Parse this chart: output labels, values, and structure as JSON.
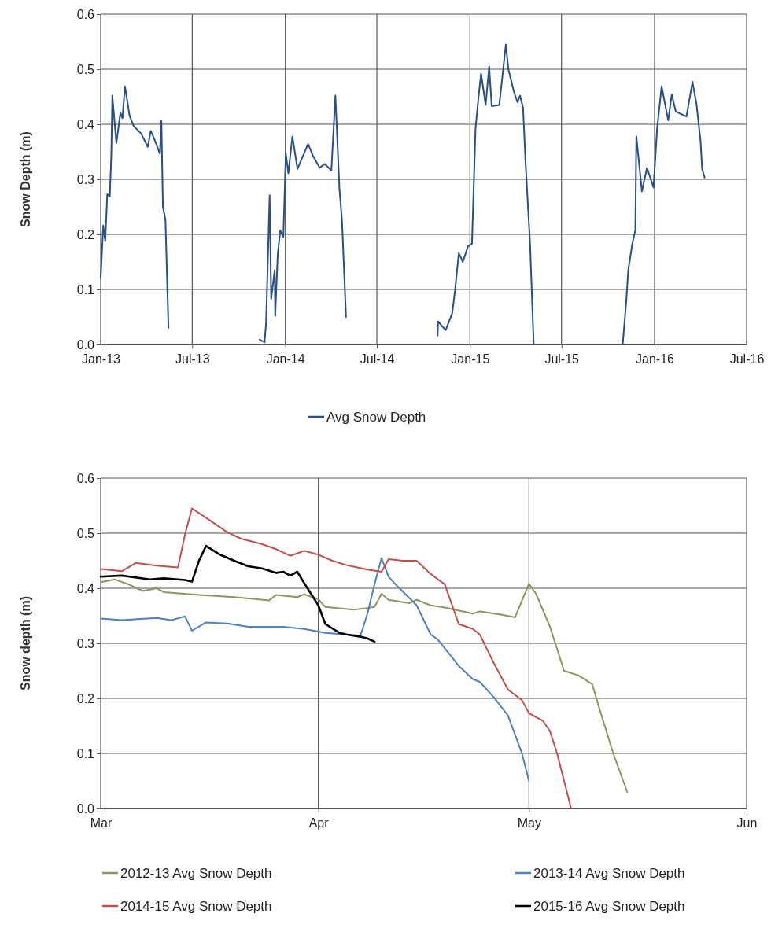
{
  "chart_data": [
    {
      "type": "line",
      "ylabel": "Snow Depth (m)",
      "grid": true,
      "legend": "bottom",
      "xlim": [
        "2013-01-01",
        "2016-07-01"
      ],
      "xticks": [
        {
          "value": "2013-01-01",
          "label": "Jan-13"
        },
        {
          "value": "2013-07-01",
          "label": "Jul-13"
        },
        {
          "value": "2014-01-01",
          "label": "Jan-14"
        },
        {
          "value": "2014-07-01",
          "label": "Jul-14"
        },
        {
          "value": "2015-01-01",
          "label": "Jan-15"
        },
        {
          "value": "2015-07-01",
          "label": "Jul-15"
        },
        {
          "value": "2016-01-01",
          "label": "Jan-16"
        },
        {
          "value": "2016-07-01",
          "label": "Jul-16"
        }
      ],
      "ylim": [
        0,
        0.6
      ],
      "yticks": [
        {
          "value": 0,
          "label": "0.0"
        },
        {
          "value": 0.1,
          "label": "0.1"
        },
        {
          "value": 0.2,
          "label": "0.2"
        },
        {
          "value": 0.3,
          "label": "0.3"
        },
        {
          "value": 0.4,
          "label": "0.4"
        },
        {
          "value": 0.5,
          "label": "0.5"
        },
        {
          "value": 0.6,
          "label": "0.6"
        }
      ],
      "series": [
        {
          "name": "Avg Snow Depth",
          "color": "#284f86",
          "x": [
            "2013-01-01",
            "2013-01-06",
            "2013-01-10",
            "2013-01-14",
            "2013-01-19",
            "2013-01-22",
            "2013-01-24",
            "2013-02-01",
            "2013-02-09",
            "2013-02-13",
            "2013-02-18",
            "2013-02-27",
            "2013-03-07",
            "2013-03-22",
            "2013-04-04",
            "2013-04-10",
            "2013-04-17",
            "2013-04-28",
            "2013-05-01",
            "2013-05-04",
            "2013-05-09",
            "2013-05-15",
            "2013-08-01",
            "2013-11-11",
            "2013-11-21",
            "2013-11-24",
            "2013-12-01",
            "2013-12-04",
            "2013-12-11",
            "2013-12-12",
            "2013-12-17",
            "2013-12-22",
            "2013-12-28",
            "2014-01-02",
            "2014-01-07",
            "2014-01-15",
            "2014-01-25",
            "2014-02-07",
            "2014-02-15",
            "2014-02-25",
            "2014-03-10",
            "2014-03-20",
            "2014-04-02",
            "2014-04-10",
            "2014-04-18",
            "2014-04-23",
            "2014-05-01",
            "2014-08-01",
            "2014-10-29",
            "2014-10-30",
            "2014-11-14",
            "2014-11-27",
            "2014-12-03",
            "2014-12-10",
            "2014-12-18",
            "2014-12-28",
            "2015-01-05",
            "2015-01-12",
            "2015-01-18",
            "2015-01-23",
            "2015-02-01",
            "2015-02-08",
            "2015-02-13",
            "2015-02-28",
            "2015-03-13",
            "2015-03-18",
            "2015-03-29",
            "2015-04-05",
            "2015-04-10",
            "2015-04-16",
            "2015-04-21",
            "2015-04-30",
            "2015-05-07",
            "2015-08-01",
            "2015-10-30",
            "2015-11-06",
            "2015-11-10",
            "2015-11-18",
            "2015-11-24",
            "2015-11-26",
            "2015-12-07",
            "2015-12-17",
            "2015-12-30",
            "2016-01-06",
            "2016-01-15",
            "2016-01-28",
            "2016-02-04",
            "2016-02-12",
            "2016-03-04",
            "2016-03-16",
            "2016-03-24",
            "2016-04-01",
            "2016-04-04",
            "2016-04-09"
          ],
          "values": [
            0.121,
            0.216,
            0.188,
            0.273,
            0.269,
            0.345,
            0.452,
            0.366,
            0.421,
            0.411,
            0.469,
            0.416,
            0.397,
            0.383,
            0.359,
            0.388,
            0.373,
            0.347,
            0.406,
            0.25,
            0.226,
            0.03,
            null,
            0.009,
            0.004,
            0.04,
            0.271,
            0.083,
            0.135,
            0.052,
            0.164,
            0.207,
            0.195,
            0.347,
            0.311,
            0.378,
            0.319,
            0.347,
            0.364,
            0.342,
            0.321,
            0.328,
            0.316,
            0.452,
            0.283,
            0.226,
            0.05,
            null,
            0.016,
            0.042,
            0.026,
            0.057,
            0.102,
            0.166,
            0.15,
            0.178,
            0.183,
            0.392,
            0.45,
            0.492,
            0.435,
            0.505,
            0.433,
            0.435,
            0.545,
            0.5,
            0.459,
            0.44,
            0.452,
            0.43,
            0.33,
            0.18,
            0,
            null,
            0,
            0.078,
            0.135,
            0.183,
            0.207,
            0.378,
            0.278,
            0.321,
            0.285,
            0.392,
            0.469,
            0.407,
            0.454,
            0.423,
            0.414,
            0.477,
            0.436,
            0.369,
            0.319,
            0.303
          ]
        }
      ]
    },
    {
      "type": "line",
      "ylabel": "Snow depth (m)",
      "grid": true,
      "legend": "bottom",
      "xlim": [
        "--03-01",
        "--06-01"
      ],
      "xticks": [
        {
          "value": "--03-01",
          "label": "Mar"
        },
        {
          "value": "--04-01",
          "label": "Apr"
        },
        {
          "value": "--05-01",
          "label": "May"
        },
        {
          "value": "--06-01",
          "label": "Jun"
        }
      ],
      "ylim": [
        0,
        0.6
      ],
      "yticks": [
        {
          "value": 0,
          "label": "0.0"
        },
        {
          "value": 0.1,
          "label": "0.1"
        },
        {
          "value": 0.2,
          "label": "0.2"
        },
        {
          "value": 0.3,
          "label": "0.3"
        },
        {
          "value": 0.4,
          "label": "0.4"
        },
        {
          "value": 0.5,
          "label": "0.5"
        },
        {
          "value": 0.6,
          "label": "0.6"
        }
      ],
      "series": [
        {
          "name": "2012-13 Avg Snow Depth",
          "color": "#8c9460",
          "x": [
            "--03-01",
            "--03-03",
            "--03-05",
            "--03-07",
            "--03-09",
            "--03-10",
            "--03-15",
            "--03-20",
            "--03-25",
            "--03-26",
            "--03-29",
            "--03-30",
            "--04-01",
            "--04-02",
            "--04-06",
            "--04-08",
            "--04-09",
            "--04-10",
            "--04-11",
            "--04-14",
            "--04-15",
            "--04-17",
            "--04-19",
            "--04-23",
            "--04-24",
            "--04-27",
            "--04-29",
            "--05-01",
            "--05-02",
            "--05-04",
            "--05-06",
            "--05-08",
            "--05-10",
            "--05-11",
            "--05-13",
            "--05-15"
          ],
          "values": [
            0.411,
            0.416,
            0.407,
            0.395,
            0.4,
            0.393,
            0.388,
            0.384,
            0.378,
            0.388,
            0.384,
            0.389,
            0.38,
            0.366,
            0.361,
            0.364,
            0.366,
            0.39,
            0.379,
            0.373,
            0.379,
            0.369,
            0.365,
            0.354,
            0.358,
            0.352,
            0.347,
            0.408,
            0.39,
            0.33,
            0.25,
            0.242,
            0.226,
            0.183,
            0.1,
            0.03
          ]
        },
        {
          "name": "2013-14 Avg Snow Depth",
          "color": "#4f81bd",
          "x": [
            "--03-01",
            "--03-04",
            "--03-09",
            "--03-11",
            "--03-13",
            "--03-14",
            "--03-16",
            "--03-19",
            "--03-22",
            "--03-27",
            "--03-30",
            "--04-02",
            "--04-05",
            "--04-07",
            "--04-08",
            "--04-09",
            "--04-10",
            "--04-11",
            "--04-12",
            "--04-15",
            "--04-17",
            "--04-18",
            "--04-21",
            "--04-23",
            "--04-24",
            "--04-26",
            "--04-28",
            "--04-30",
            "--05-01"
          ],
          "values": [
            0.345,
            0.342,
            0.346,
            0.342,
            0.349,
            0.323,
            0.338,
            0.336,
            0.33,
            0.33,
            0.326,
            0.319,
            0.316,
            0.314,
            0.354,
            0.407,
            0.455,
            0.421,
            0.407,
            0.369,
            0.316,
            0.307,
            0.259,
            0.235,
            0.23,
            0.202,
            0.169,
            0.1,
            0.05
          ]
        },
        {
          "name": "2014-15 Avg Snow Depth",
          "color": "#c0504d",
          "x": [
            "--03-01",
            "--03-04",
            "--03-06",
            "--03-09",
            "--03-12",
            "--03-13",
            "--03-14",
            "--03-16",
            "--03-19",
            "--03-21",
            "--03-24",
            "--03-26",
            "--03-28",
            "--03-30",
            "--04-01",
            "--04-03",
            "--04-05",
            "--04-08",
            "--04-10",
            "--04-11",
            "--04-13",
            "--04-15",
            "--04-17",
            "--04-19",
            "--04-21",
            "--04-23",
            "--04-24",
            "--04-26",
            "--04-28",
            "--04-30",
            "--05-01",
            "--05-03",
            "--05-04",
            "--05-05",
            "--05-06",
            "--05-07"
          ],
          "values": [
            0.435,
            0.431,
            0.446,
            0.441,
            0.438,
            0.497,
            0.545,
            0.528,
            0.502,
            0.49,
            0.48,
            0.471,
            0.459,
            0.468,
            0.461,
            0.45,
            0.442,
            0.434,
            0.43,
            0.453,
            0.45,
            0.45,
            0.426,
            0.407,
            0.335,
            0.326,
            0.316,
            0.264,
            0.216,
            0.197,
            0.173,
            0.159,
            0.14,
            0.1,
            0.05,
            0
          ]
        },
        {
          "name": "2015-16 Avg Snow Depth",
          "color": "#000000",
          "x": [
            "--03-01",
            "--03-04",
            "--03-08",
            "--03-10",
            "--03-13",
            "--03-14",
            "--03-15",
            "--03-16",
            "--03-18",
            "--03-20",
            "--03-22",
            "--03-24",
            "--03-26",
            "--03-27",
            "--03-28",
            "--03-29",
            "--03-30",
            "--04-01",
            "--04-02",
            "--04-04",
            "--04-05",
            "--04-07",
            "--04-08",
            "--04-09"
          ],
          "values": [
            0.421,
            0.423,
            0.416,
            0.418,
            0.415,
            0.412,
            0.45,
            0.477,
            0.461,
            0.45,
            0.44,
            0.436,
            0.428,
            0.43,
            0.423,
            0.43,
            0.409,
            0.369,
            0.335,
            0.319,
            0.316,
            0.312,
            0.309,
            0.303
          ]
        }
      ]
    }
  ]
}
